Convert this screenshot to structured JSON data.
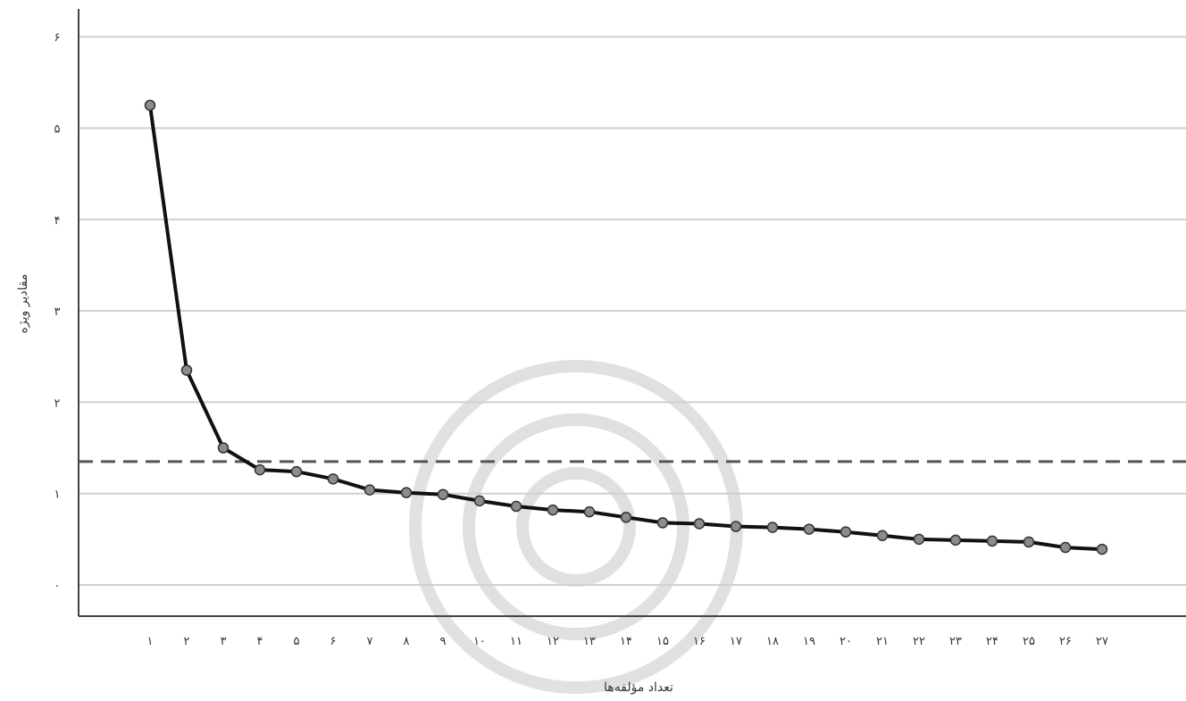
{
  "chart_data": {
    "type": "line",
    "xlabel": "تعداد مؤلفه‌ها",
    "ylabel": "مقادیر ویژه",
    "x_tick_labels": [
      "۱",
      "۲",
      "۳",
      "۴",
      "۵",
      "۶",
      "۷",
      "۸",
      "۹",
      "۱۰",
      "۱۱",
      "۱۲",
      "۱۳",
      "۱۴",
      "۱۵",
      "۱۶",
      "۱۷",
      "۱۸",
      "۱۹",
      "۲۰",
      "۲۱",
      "۲۲",
      "۲۳",
      "۲۴",
      "۲۵",
      "۲۶",
      "۲۷"
    ],
    "y_tick_labels": [
      "۰",
      "۱",
      "۲",
      "۳",
      "۴",
      "۵",
      "۶"
    ],
    "y_ticks": [
      0,
      1,
      2,
      3,
      4,
      5,
      6
    ],
    "ylim": [
      -0.3,
      6.3
    ],
    "x": [
      1,
      2,
      3,
      4,
      5,
      6,
      7,
      8,
      9,
      10,
      11,
      12,
      13,
      14,
      15,
      16,
      17,
      18,
      19,
      20,
      21,
      22,
      23,
      24,
      25,
      26,
      27
    ],
    "series": [
      {
        "values": [
          5.25,
          2.35,
          1.5,
          1.26,
          1.24,
          1.16,
          1.04,
          1.01,
          0.99,
          0.92,
          0.86,
          0.82,
          0.8,
          0.74,
          0.68,
          0.67,
          0.64,
          0.63,
          0.61,
          0.58,
          0.54,
          0.5,
          0.49,
          0.48,
          0.47,
          0.41,
          0.39
        ]
      }
    ],
    "reference_line": {
      "y": 1.35,
      "style": "dashed"
    },
    "grid": true,
    "colors": {
      "line": "#111111",
      "marker_fill": "#8c8c8c",
      "grid": "#cfcfcf",
      "reference": "#555555",
      "axis": "#444444"
    }
  }
}
